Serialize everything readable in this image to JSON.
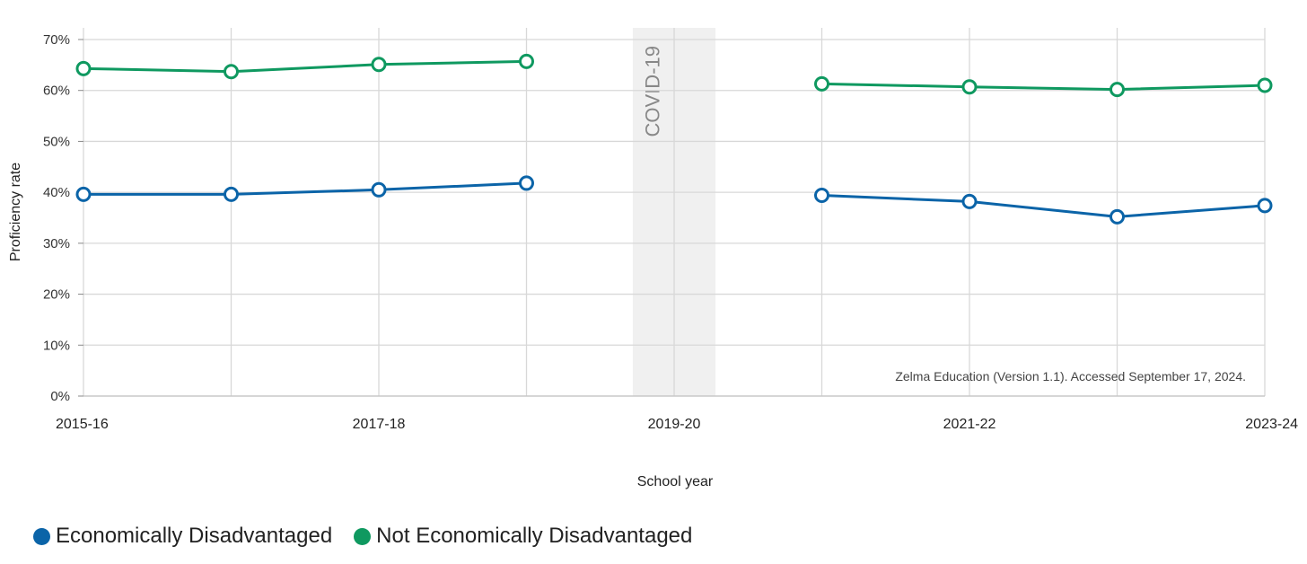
{
  "chart_data": {
    "type": "line",
    "xlabel": "School year",
    "ylabel": "Proficiency rate",
    "x_tick_labels": [
      "2015-16",
      "2017-18",
      "2019-20",
      "2021-22",
      "2023-24"
    ],
    "x_tick_positions": [
      0,
      2,
      4,
      6,
      8
    ],
    "x_range": [
      0,
      8
    ],
    "x_gridlines": [
      0,
      1,
      2,
      3,
      4,
      5,
      6,
      7,
      8
    ],
    "ylim": [
      0,
      70
    ],
    "y_ticks": [
      0,
      10,
      20,
      30,
      40,
      50,
      60,
      70
    ],
    "y_tick_labels": [
      "0%",
      "10%",
      "20%",
      "30%",
      "40%",
      "50%",
      "60%",
      "70%"
    ],
    "grid": true,
    "covid_band": {
      "label": "COVID-19",
      "x_start": 3.72,
      "x_end": 4.28,
      "color": "#f0f0f0"
    },
    "annotation": "Zelma Education (Version 1.1). Accessed September 17, 2024.",
    "series": [
      {
        "name": "Economically Disadvantaged",
        "color": "#0b64a8",
        "segments": [
          {
            "x": [
              0,
              1,
              2,
              3
            ],
            "y": [
              39.6,
              39.6,
              40.5,
              41.8
            ]
          },
          {
            "x": [
              5,
              6,
              7,
              8
            ],
            "y": [
              39.4,
              38.2,
              35.2,
              37.4
            ]
          }
        ]
      },
      {
        "name": "Not Economically Disadvantaged",
        "color": "#0f9960",
        "segments": [
          {
            "x": [
              0,
              1,
              2,
              3
            ],
            "y": [
              64.3,
              63.7,
              65.1,
              65.7
            ]
          },
          {
            "x": [
              5,
              6,
              7,
              8
            ],
            "y": [
              61.3,
              60.7,
              60.2,
              61.0
            ]
          }
        ]
      }
    ],
    "legend": {
      "position": "bottom-left"
    }
  }
}
